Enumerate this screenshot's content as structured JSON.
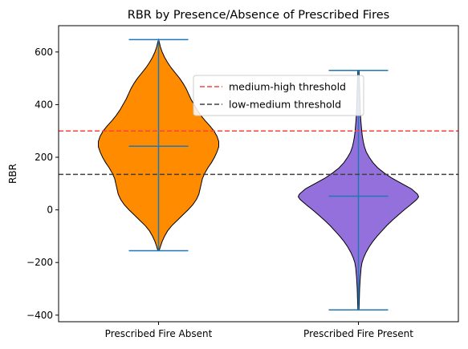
{
  "chart_data": {
    "type": "violin",
    "title": "RBR by Presence/Absence of Prescribed Fires",
    "xlabel": "",
    "ylabel": "RBR",
    "ylim": [
      -425,
      700
    ],
    "yticks": [
      -400,
      -200,
      0,
      200,
      400,
      600
    ],
    "categories": [
      "Prescribed Fire Absent",
      "Prescribed Fire Present"
    ],
    "violins": [
      {
        "name": "Prescribed Fire Absent",
        "color": "#ff8c00",
        "min": -155,
        "max": 647,
        "mean": 242,
        "density": [
          [
            -155,
            0.01
          ],
          [
            -140,
            0.03
          ],
          [
            -120,
            0.06
          ],
          [
            -100,
            0.1
          ],
          [
            -80,
            0.15
          ],
          [
            -60,
            0.22
          ],
          [
            -40,
            0.31
          ],
          [
            -20,
            0.4
          ],
          [
            0,
            0.49
          ],
          [
            20,
            0.57
          ],
          [
            40,
            0.63
          ],
          [
            60,
            0.67
          ],
          [
            80,
            0.69
          ],
          [
            100,
            0.71
          ],
          [
            120,
            0.73
          ],
          [
            140,
            0.77
          ],
          [
            160,
            0.82
          ],
          [
            180,
            0.88
          ],
          [
            200,
            0.93
          ],
          [
            220,
            0.97
          ],
          [
            240,
            1.0
          ],
          [
            260,
            1.0
          ],
          [
            280,
            0.97
          ],
          [
            300,
            0.92
          ],
          [
            320,
            0.85
          ],
          [
            340,
            0.77
          ],
          [
            360,
            0.7
          ],
          [
            380,
            0.64
          ],
          [
            400,
            0.59
          ],
          [
            420,
            0.54
          ],
          [
            440,
            0.5
          ],
          [
            460,
            0.46
          ],
          [
            480,
            0.41
          ],
          [
            500,
            0.35
          ],
          [
            520,
            0.28
          ],
          [
            540,
            0.21
          ],
          [
            560,
            0.15
          ],
          [
            580,
            0.1
          ],
          [
            600,
            0.06
          ],
          [
            620,
            0.03
          ],
          [
            640,
            0.01
          ],
          [
            647,
            0.0
          ]
        ]
      },
      {
        "name": "Prescribed Fire Present",
        "color": "#9370db",
        "min": -380,
        "max": 530,
        "mean": 52,
        "density": [
          [
            -380,
            0.01
          ],
          [
            -340,
            0.015
          ],
          [
            -300,
            0.02
          ],
          [
            -260,
            0.03
          ],
          [
            -220,
            0.045
          ],
          [
            -200,
            0.06
          ],
          [
            -180,
            0.09
          ],
          [
            -160,
            0.13
          ],
          [
            -140,
            0.18
          ],
          [
            -120,
            0.24
          ],
          [
            -100,
            0.31
          ],
          [
            -80,
            0.39
          ],
          [
            -60,
            0.47
          ],
          [
            -40,
            0.56
          ],
          [
            -20,
            0.66
          ],
          [
            0,
            0.76
          ],
          [
            20,
            0.87
          ],
          [
            40,
            0.97
          ],
          [
            50,
            1.0
          ],
          [
            60,
            0.98
          ],
          [
            80,
            0.88
          ],
          [
            100,
            0.72
          ],
          [
            120,
            0.56
          ],
          [
            140,
            0.43
          ],
          [
            160,
            0.32
          ],
          [
            180,
            0.24
          ],
          [
            200,
            0.18
          ],
          [
            220,
            0.13
          ],
          [
            240,
            0.1
          ],
          [
            260,
            0.08
          ],
          [
            280,
            0.065
          ],
          [
            300,
            0.055
          ],
          [
            340,
            0.04
          ],
          [
            380,
            0.03
          ],
          [
            420,
            0.025
          ],
          [
            460,
            0.02
          ],
          [
            500,
            0.015
          ],
          [
            530,
            0.01
          ]
        ]
      }
    ],
    "reference_lines": [
      {
        "label": "medium-high threshold",
        "y": 300,
        "color": "#ff4040",
        "style": "dashed"
      },
      {
        "label": "low-medium threshold",
        "y": 135,
        "color": "#404040",
        "style": "dashed"
      }
    ],
    "grid": false,
    "legend": "upper-center",
    "marker_color": "#1f77b4"
  }
}
